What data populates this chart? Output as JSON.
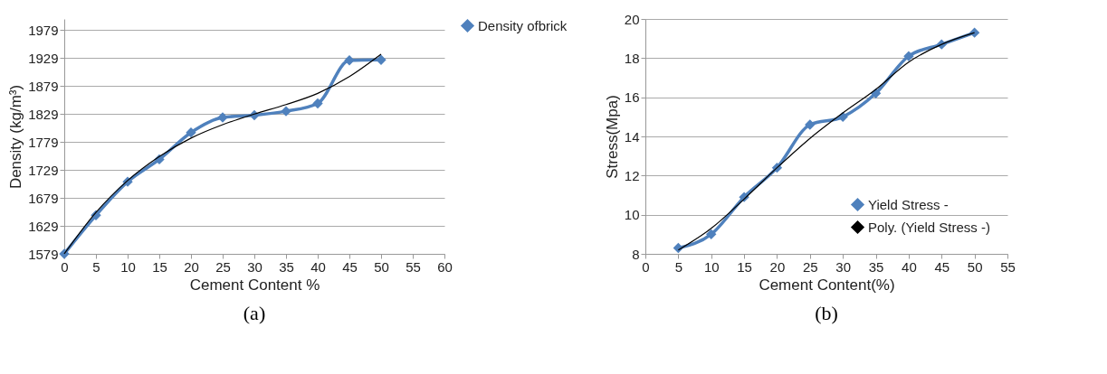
{
  "chart_data": [
    {
      "type": "line",
      "xlabel": "Cement Content %",
      "ylabel": "Density (kg/m³)",
      "x": [
        0,
        5,
        10,
        15,
        20,
        25,
        30,
        35,
        40,
        45,
        50
      ],
      "xlim": [
        0,
        60
      ],
      "xticks": [
        0,
        5,
        10,
        15,
        20,
        25,
        30,
        35,
        40,
        45,
        50,
        55,
        60
      ],
      "ylim": [
        1579,
        1999
      ],
      "yticks": [
        1579,
        1629,
        1679,
        1729,
        1779,
        1829,
        1879,
        1929,
        1979
      ],
      "grid": "y",
      "legend": "right",
      "marker": "diamond",
      "annotations": [
        "(a)"
      ],
      "series": [
        {
          "name": "Density ofbrick",
          "color": "#4f81bd",
          "values": [
            1579,
            1648,
            1708,
            1748,
            1796,
            1823,
            1827,
            1834,
            1848,
            1925,
            1926
          ]
        },
        {
          "color": "#000000",
          "marker": "none",
          "values": [
            1579,
            1653,
            1710,
            1753,
            1786,
            1810,
            1829,
            1846,
            1866,
            1896,
            1936
          ]
        }
      ]
    },
    {
      "type": "line",
      "xlabel": "Cement Content(%)",
      "ylabel": "Stress(Mpa)",
      "x": [
        5,
        10,
        15,
        20,
        25,
        30,
        35,
        40,
        45,
        50
      ],
      "xlim": [
        0,
        55
      ],
      "xticks": [
        0,
        5,
        10,
        15,
        20,
        25,
        30,
        35,
        40,
        45,
        50,
        55
      ],
      "ylim": [
        8,
        20
      ],
      "yticks": [
        8,
        10,
        12,
        14,
        16,
        18,
        20
      ],
      "grid": "y",
      "legend": "bottom right",
      "marker": "diamond",
      "annotations": [
        "(b)"
      ],
      "series": [
        {
          "name": "Yield Stress -",
          "color": "#4f81bd",
          "values": [
            8.3,
            9.0,
            10.9,
            12.4,
            14.6,
            15.0,
            16.2,
            18.1,
            18.7,
            19.3
          ]
        },
        {
          "name": "Poly. (Yield Stress -)",
          "color": "#000000",
          "marker": "none",
          "values": [
            8.2,
            9.3,
            10.8,
            12.4,
            13.9,
            15.2,
            16.4,
            17.8,
            18.7,
            19.3
          ]
        }
      ]
    }
  ]
}
